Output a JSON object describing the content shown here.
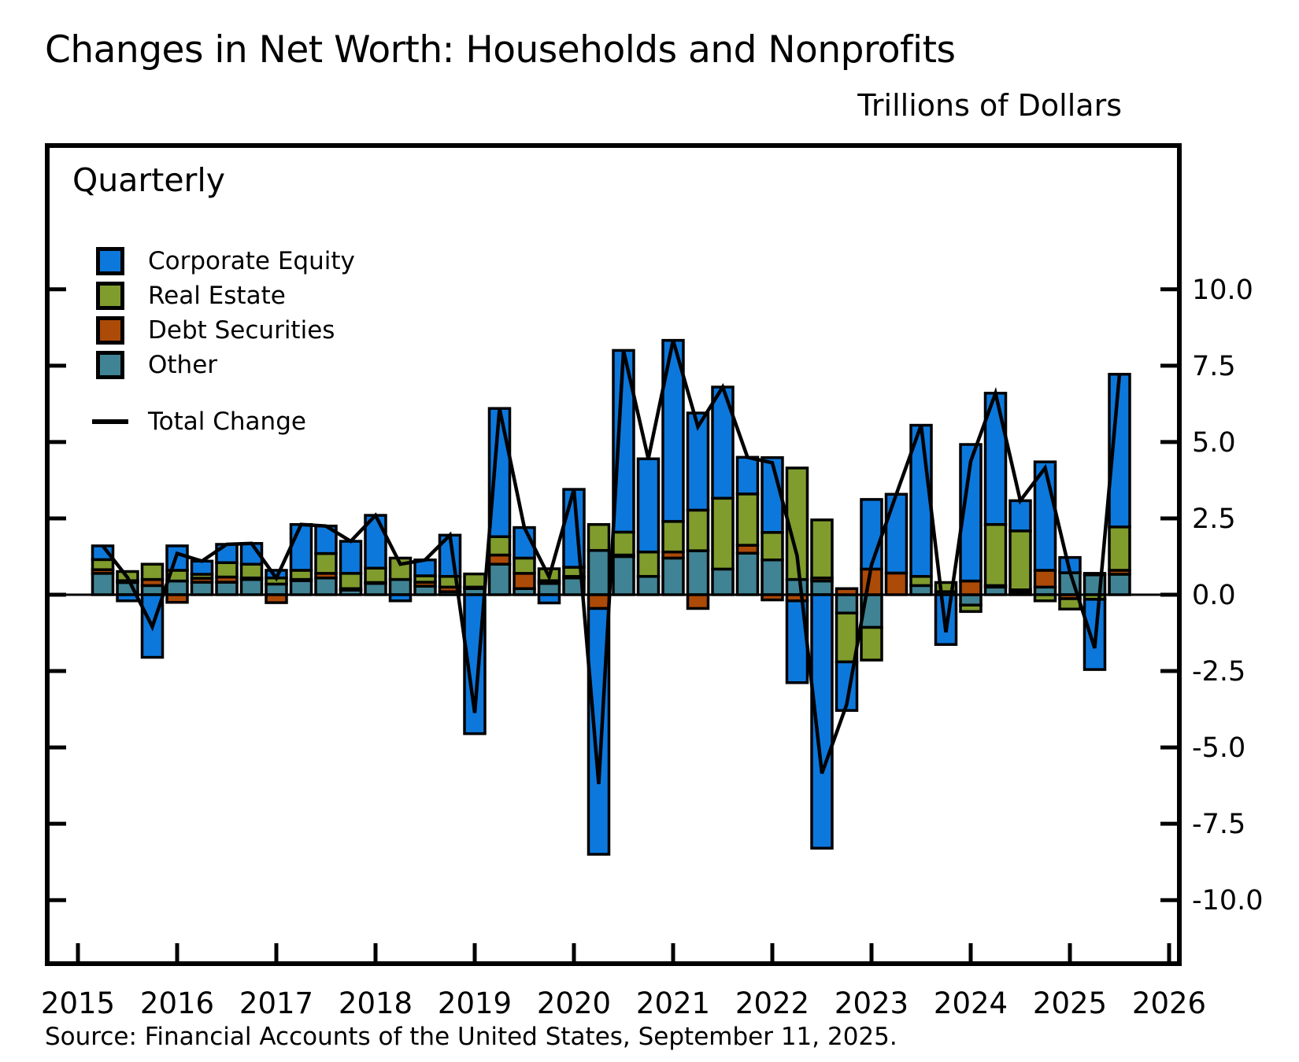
{
  "header": {
    "title": "Changes in Net Worth: Households and Nonprofits",
    "units_label": "Trillions of Dollars"
  },
  "plot": {
    "frequency_label": "Quarterly"
  },
  "legend": {
    "items": [
      {
        "label": "Corporate Equity",
        "color": "#0d78dc",
        "type": "box"
      },
      {
        "label": "Real Estate",
        "color": "#809c2d",
        "type": "box"
      },
      {
        "label": "Debt Securities",
        "color": "#ac4a08",
        "type": "box"
      },
      {
        "label": "Other",
        "color": "#408394",
        "type": "box"
      },
      {
        "label": "Total Change",
        "color": "#000000",
        "type": "line"
      }
    ]
  },
  "source": {
    "text": "Source: Financial Accounts of the United States, September 11, 2025."
  },
  "chart_data": {
    "type": "bar",
    "stacked": true,
    "title": "Changes in Net Worth: Households and Nonprofits",
    "ylabel": "Trillions of Dollars",
    "frequency": "Quarterly",
    "ylim": [
      -12.1,
      14.7
    ],
    "yticks": [
      10.0,
      7.5,
      5.0,
      2.5,
      0.0,
      -2.5,
      -5.0,
      -7.5,
      -10.0
    ],
    "ytick_labels": [
      "10.0",
      "7.5",
      "5.0",
      "2.5",
      "0.0",
      "-2.5",
      "-5.0",
      "-7.5",
      "-10.0"
    ],
    "xticks": [
      2015,
      2016,
      2017,
      2018,
      2019,
      2020,
      2021,
      2022,
      2023,
      2024,
      2025,
      2026
    ],
    "xtick_labels": [
      "2015",
      "2016",
      "2017",
      "2018",
      "2019",
      "2020",
      "2021",
      "2022",
      "2023",
      "2024",
      "2025",
      "2026"
    ],
    "grid": false,
    "legend_position": "upper-left-inside",
    "stack_order_from_baseline": [
      "Other",
      "Debt Securities",
      "Real Estate",
      "Corporate Equity"
    ],
    "categories": [
      "2015 Q1",
      "2015 Q2",
      "2015 Q3",
      "2015 Q4",
      "2016 Q1",
      "2016 Q2",
      "2016 Q3",
      "2016 Q4",
      "2017 Q1",
      "2017 Q2",
      "2017 Q3",
      "2017 Q4",
      "2018 Q1",
      "2018 Q2",
      "2018 Q3",
      "2018 Q4",
      "2019 Q1",
      "2019 Q2",
      "2019 Q3",
      "2019 Q4",
      "2020 Q1",
      "2020 Q2",
      "2020 Q3",
      "2020 Q4",
      "2021 Q1",
      "2021 Q2",
      "2021 Q3",
      "2021 Q4",
      "2022 Q1",
      "2022 Q2",
      "2022 Q3",
      "2022 Q4",
      "2023 Q1",
      "2023 Q2",
      "2023 Q3",
      "2023 Q4",
      "2024 Q1",
      "2024 Q2",
      "2024 Q3",
      "2024 Q4",
      "2025 Q1",
      "2025 Q2"
    ],
    "series": [
      {
        "name": "Corporate Equity",
        "color": "#0d78dc",
        "values": [
          0.45,
          -0.2,
          -2.05,
          0.8,
          0.43,
          0.6,
          0.68,
          0.25,
          1.5,
          0.9,
          1.05,
          1.73,
          -0.2,
          0.52,
          1.35,
          -4.55,
          4.2,
          1.0,
          -0.27,
          2.55,
          -8.05,
          5.95,
          3.05,
          5.93,
          3.18,
          3.64,
          1.2,
          2.45,
          -2.68,
          -8.3,
          -1.59,
          2.28,
          2.58,
          4.95,
          -1.63,
          4.47,
          4.3,
          0.99,
          3.55,
          0.5,
          -2.3,
          5.0
        ]
      },
      {
        "name": "Real Estate",
        "color": "#809c2d",
        "values": [
          0.33,
          0.3,
          0.5,
          0.35,
          0.13,
          0.47,
          0.45,
          0.2,
          0.3,
          0.65,
          0.5,
          0.47,
          0.7,
          0.21,
          0.35,
          0.43,
          0.6,
          0.5,
          0.39,
          0.3,
          0.85,
          0.75,
          0.8,
          1.0,
          1.33,
          2.32,
          1.68,
          0.9,
          3.65,
          1.9,
          -1.6,
          -1.07,
          0.0,
          0.3,
          0.3,
          -0.21,
          2.0,
          1.93,
          -0.2,
          -0.34,
          -0.15,
          1.42
        ]
      },
      {
        "name": "Debt Securities",
        "color": "#ac4a08",
        "values": [
          0.12,
          0.06,
          0.2,
          -0.25,
          0.13,
          0.17,
          0.05,
          -0.26,
          0.04,
          0.15,
          0.05,
          0.03,
          0.0,
          0.13,
          0.15,
          0.05,
          0.3,
          0.5,
          0.09,
          0.05,
          -0.45,
          0.05,
          0.0,
          0.2,
          -0.45,
          0.0,
          0.26,
          -0.17,
          -0.2,
          0.1,
          0.2,
          0.84,
          0.71,
          0.0,
          0.0,
          0.45,
          0.05,
          0.09,
          0.55,
          -0.13,
          0.05,
          0.13
        ]
      },
      {
        "name": "Other",
        "color": "#408394",
        "values": [
          0.7,
          0.4,
          0.3,
          0.45,
          0.41,
          0.41,
          0.5,
          0.35,
          0.46,
          0.55,
          0.15,
          0.37,
          0.5,
          0.28,
          0.1,
          0.2,
          1.0,
          0.2,
          0.37,
          0.55,
          1.45,
          1.25,
          0.6,
          1.2,
          1.44,
          0.84,
          1.36,
          1.14,
          0.5,
          0.45,
          -0.6,
          -1.07,
          0.0,
          0.3,
          0.1,
          -0.34,
          0.25,
          0.07,
          0.25,
          0.72,
          0.65,
          0.67
        ]
      }
    ],
    "total_line": {
      "name": "Total Change",
      "color": "#000000",
      "values": [
        1.6,
        0.56,
        -1.05,
        1.35,
        1.1,
        1.65,
        1.68,
        0.54,
        2.3,
        2.25,
        1.75,
        2.6,
        1.0,
        1.14,
        1.95,
        -3.87,
        6.1,
        2.2,
        0.58,
        3.45,
        -6.2,
        8.0,
        4.45,
        8.33,
        5.5,
        6.8,
        4.5,
        4.32,
        1.27,
        -5.85,
        -3.59,
        0.98,
        3.29,
        5.55,
        -1.23,
        4.37,
        6.6,
        3.08,
        4.15,
        0.75,
        -1.75,
        7.22
      ]
    }
  }
}
